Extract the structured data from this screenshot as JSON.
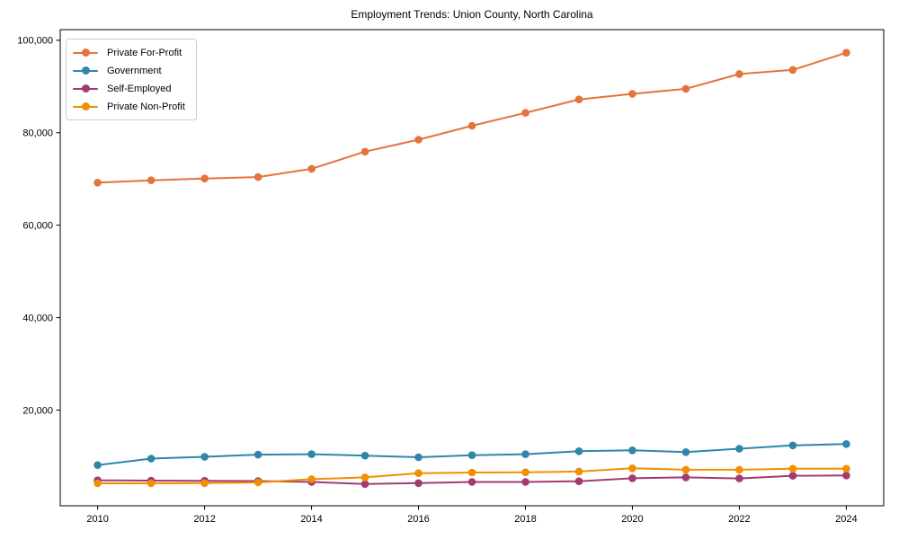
{
  "chart_data": {
    "type": "line",
    "title": "Employment Trends: Union County, North Carolina",
    "xlabel": "",
    "ylabel": "",
    "grid": false,
    "legend_position": "upper left",
    "xlim": [
      2009.3,
      2024.7
    ],
    "ylim": [
      -700,
      102300
    ],
    "x_ticks": [
      2010,
      2012,
      2014,
      2016,
      2018,
      2020,
      2022,
      2024
    ],
    "y_ticks": [
      20000,
      40000,
      60000,
      80000,
      100000
    ],
    "x": [
      2010,
      2011,
      2012,
      2013,
      2014,
      2015,
      2016,
      2017,
      2018,
      2019,
      2020,
      2021,
      2022,
      2023,
      2024
    ],
    "series": [
      {
        "name": "Private For-Profit",
        "color": "#E5733C",
        "values": [
          69200,
          69700,
          70100,
          70400,
          72200,
          75900,
          78500,
          81500,
          84300,
          87200,
          88400,
          89500,
          92700,
          93600,
          97300
        ]
      },
      {
        "name": "Government",
        "color": "#2E86AB",
        "values": [
          8100,
          9500,
          9900,
          10350,
          10450,
          10150,
          9800,
          10250,
          10450,
          11100,
          11300,
          10900,
          11650,
          12350,
          12650
        ]
      },
      {
        "name": "Self-Employed",
        "color": "#A23B72",
        "values": [
          4800,
          4750,
          4700,
          4650,
          4450,
          4000,
          4200,
          4450,
          4450,
          4600,
          5250,
          5450,
          5200,
          5800,
          5850
        ]
      },
      {
        "name": "Private Non-Profit",
        "color": "#F18F01",
        "values": [
          4150,
          4150,
          4200,
          4350,
          5050,
          5450,
          6350,
          6500,
          6550,
          6700,
          7400,
          7100,
          7100,
          7300,
          7300
        ]
      }
    ]
  }
}
